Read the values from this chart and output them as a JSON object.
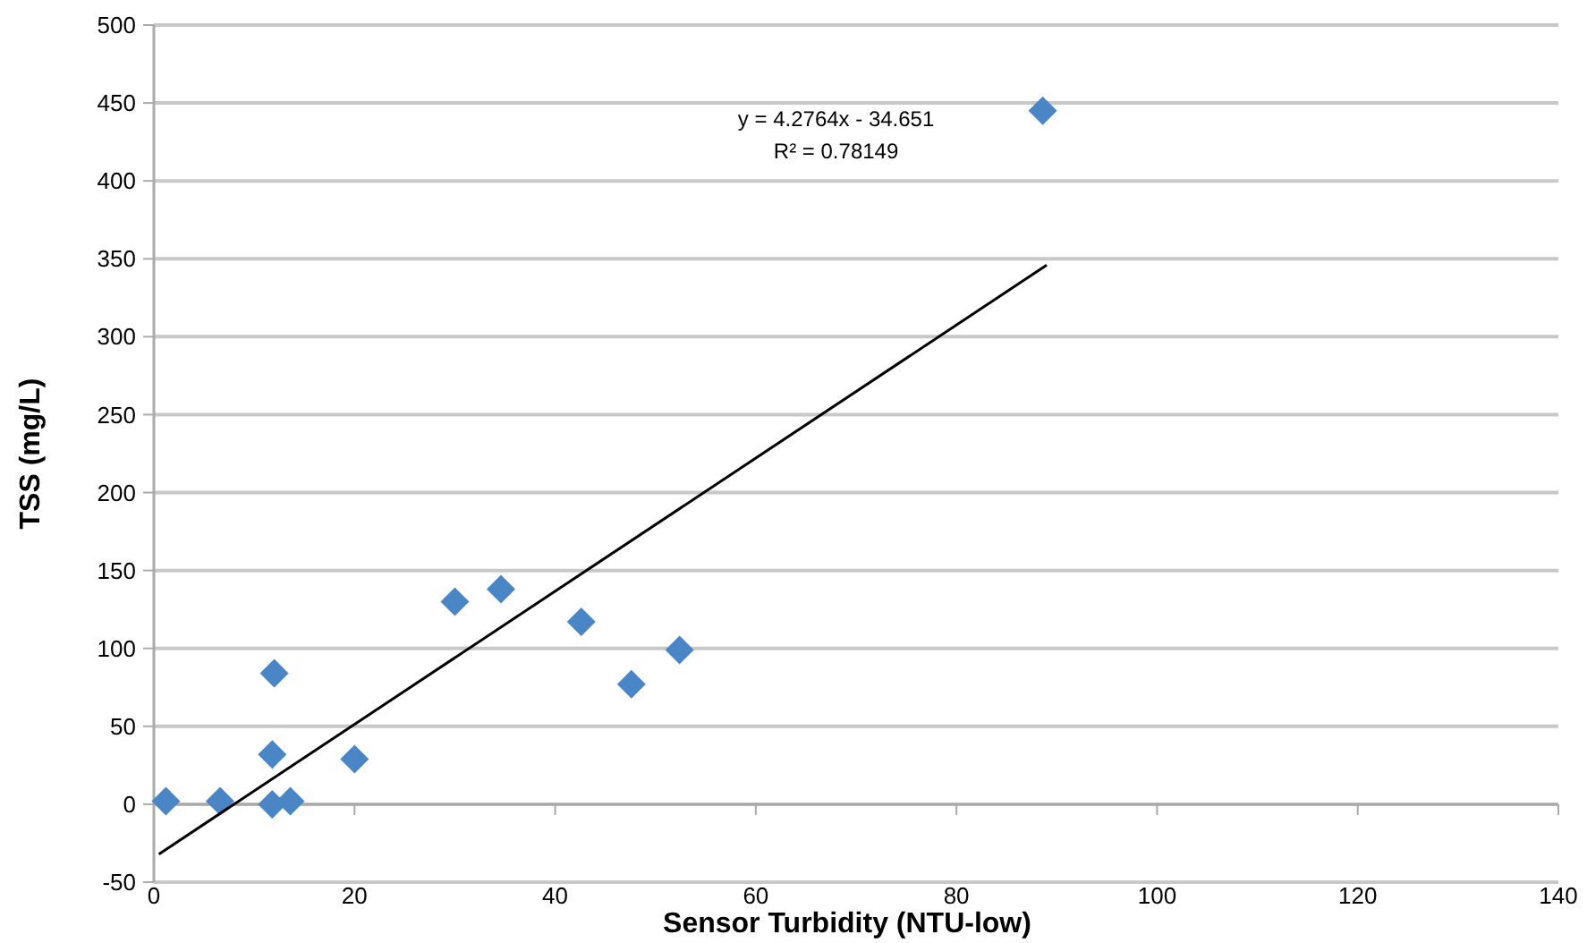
{
  "chart_data": {
    "type": "scatter",
    "xlabel": "Sensor Turbidity (NTU-low)",
    "ylabel": "TSS (mg/L)",
    "xlim": [
      0,
      140
    ],
    "xticks": [
      0,
      20,
      40,
      60,
      80,
      100,
      120,
      140
    ],
    "ylim": [
      -50,
      500
    ],
    "yticks": [
      -50,
      0,
      50,
      100,
      150,
      200,
      250,
      300,
      350,
      400,
      450,
      500
    ],
    "grid": "y",
    "series": [
      {
        "marker": "diamond",
        "color": "#4a86c5",
        "x": [
          1.2,
          6.6,
          11.8,
          12,
          11.8,
          13.6,
          20,
          30,
          34.6,
          42.6,
          47.6,
          52.4,
          88.6
        ],
        "values": [
          2,
          2,
          32,
          84,
          0,
          2,
          29,
          130,
          138,
          117,
          77,
          99,
          445
        ]
      },
      {
        "type": "line",
        "color": "#000000",
        "x": [
          0.5,
          89
        ],
        "values": [
          -32,
          346
        ]
      }
    ],
    "annotations": [
      "y = 4.2764x - 34.651",
      "R² = 0.78149"
    ]
  }
}
